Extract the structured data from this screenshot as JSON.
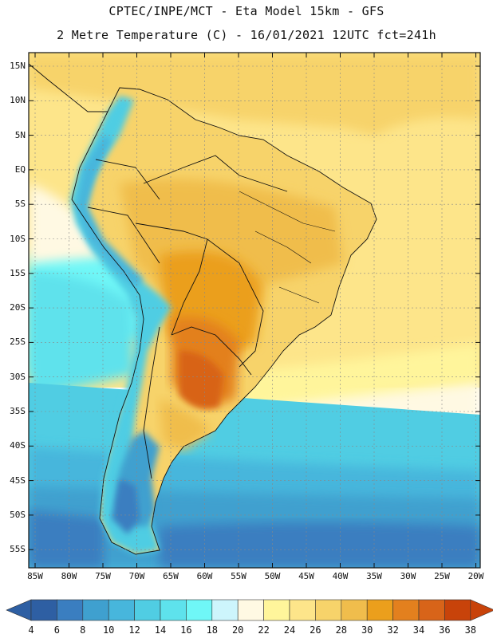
{
  "header": {
    "line1": "CPTEC/INPE/MCT -  Eta Model 15km - GFS",
    "line2": "2 Metre Temperature (C) - 16/01/2021 12UTC fct=241h"
  },
  "map": {
    "latitude_labels": [
      "15N",
      "10N",
      "5N",
      "EQ",
      "5S",
      "10S",
      "15S",
      "20S",
      "25S",
      "30S",
      "35S",
      "40S",
      "45S",
      "50S",
      "55S"
    ],
    "longitude_labels": [
      "85W",
      "80W",
      "75W",
      "70W",
      "65W",
      "60W",
      "55W",
      "50W",
      "45W",
      "40W",
      "35W",
      "30W",
      "25W",
      "20W"
    ],
    "regions": [
      {
        "name": "south-atlantic-far-south",
        "temperature_c": 8
      },
      {
        "name": "south-atlantic-mid",
        "temperature_c": 14
      },
      {
        "name": "tropical-atlantic",
        "temperature_c": 26
      },
      {
        "name": "brazil-interior",
        "temperature_c": 28
      },
      {
        "name": "pampas-hotspot",
        "temperature_c": 36
      },
      {
        "name": "andes",
        "temperature_c": 10
      }
    ]
  },
  "colorbar": {
    "labels": [
      "4",
      "6",
      "8",
      "10",
      "12",
      "14",
      "16",
      "18",
      "20",
      "22",
      "24",
      "26",
      "28",
      "30",
      "32",
      "34",
      "36",
      "38"
    ],
    "colors": [
      "#2e5fa3",
      "#3a7ec0",
      "#3fa0cf",
      "#47b6dc",
      "#50cde3",
      "#5ee2ec",
      "#6ff7f7",
      "#cdf5fc",
      "#fff9e3",
      "#fff59b",
      "#fde58a",
      "#f7d36a",
      "#f0bd4c",
      "#eb9f1c",
      "#e3801e",
      "#d86419",
      "#c8430a"
    ],
    "underflow_color": "#2e5fa3",
    "overflow_color": "#c8430a"
  }
}
